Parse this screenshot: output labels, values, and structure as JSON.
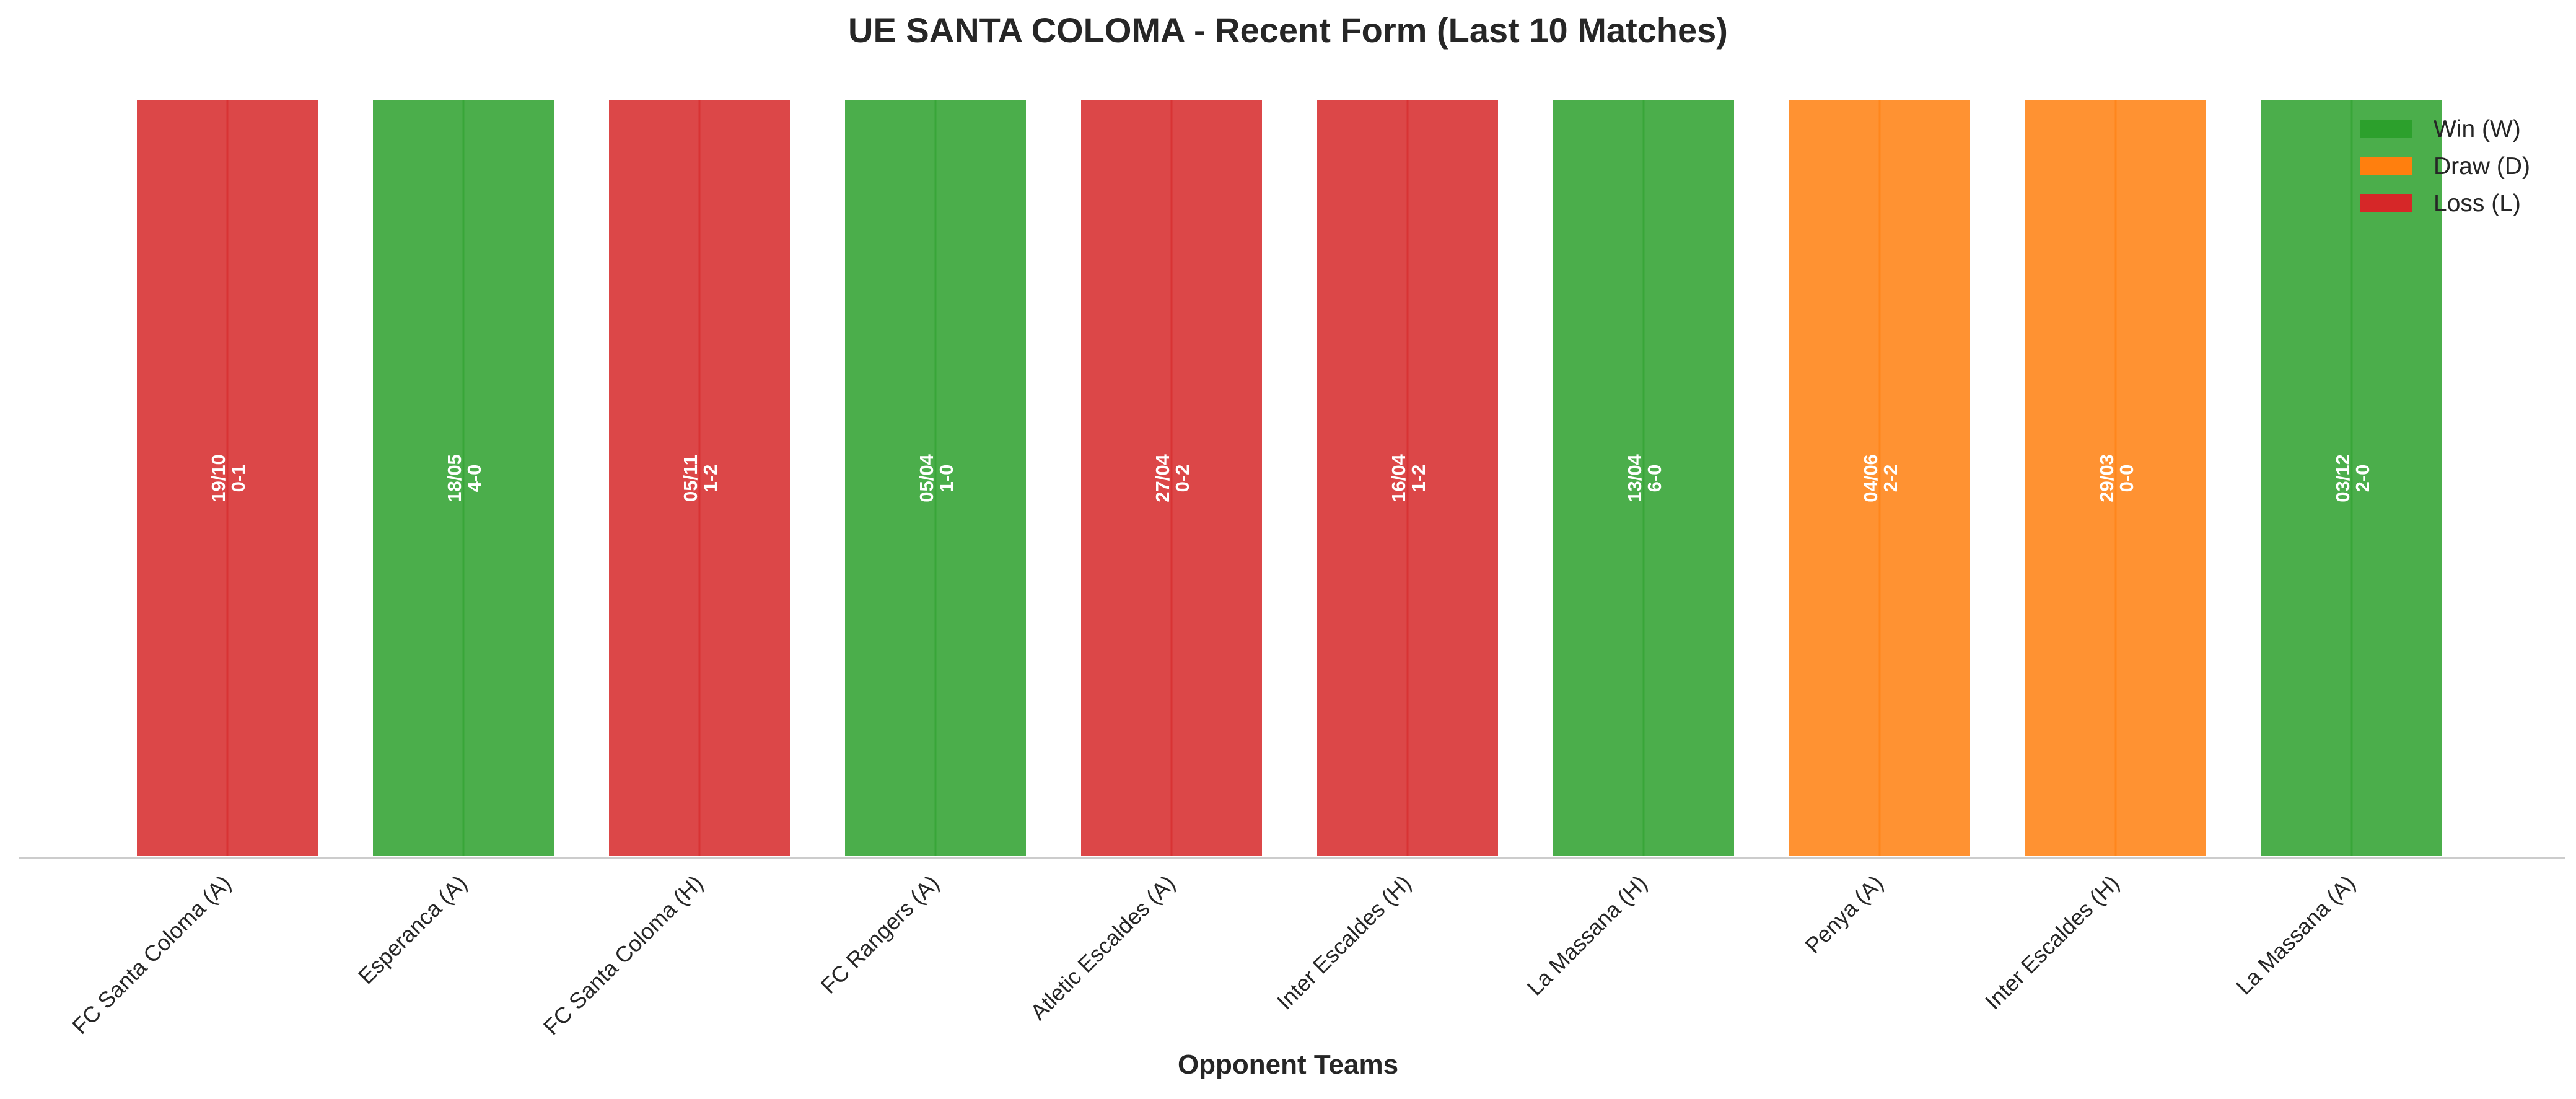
{
  "chart_data": {
    "type": "bar",
    "title": "UE SANTA COLOMA - Recent Form (Last 10 Matches)",
    "xlabel": "Opponent Teams",
    "ylabel": "",
    "categories": [
      "FC Santa Coloma (A)",
      "Esperanca (A)",
      "FC Santa Coloma (H)",
      "FC Rangers (A)",
      "Atletic Escaldes (A)",
      "Inter Escaldes (H)",
      "La Massana (H)",
      "Penya (A)",
      "Inter Escaldes (H)",
      "La Massana (A)"
    ],
    "values": [
      1,
      1,
      1,
      1,
      1,
      1,
      1,
      1,
      1,
      1
    ],
    "results": [
      "L",
      "W",
      "L",
      "W",
      "L",
      "L",
      "W",
      "D",
      "D",
      "W"
    ],
    "dates": [
      "19/10",
      "18/05",
      "05/11",
      "05/04",
      "27/04",
      "16/04",
      "13/04",
      "04/06",
      "29/03",
      "03/12"
    ],
    "scores": [
      "0-1",
      "4-0",
      "1-2",
      "1-0",
      "0-2",
      "1-2",
      "6-0",
      "2-2",
      "0-0",
      "2-0"
    ],
    "ylim": [
      0,
      1
    ],
    "grid": false,
    "legend_position": "top-right",
    "legend": [
      {
        "key": "W",
        "label": "Win (W)",
        "color": "#2ca02c"
      },
      {
        "key": "D",
        "label": "Draw (D)",
        "color": "#ff7f0e"
      },
      {
        "key": "L",
        "label": "Loss (L)",
        "color": "#d62728"
      }
    ]
  }
}
